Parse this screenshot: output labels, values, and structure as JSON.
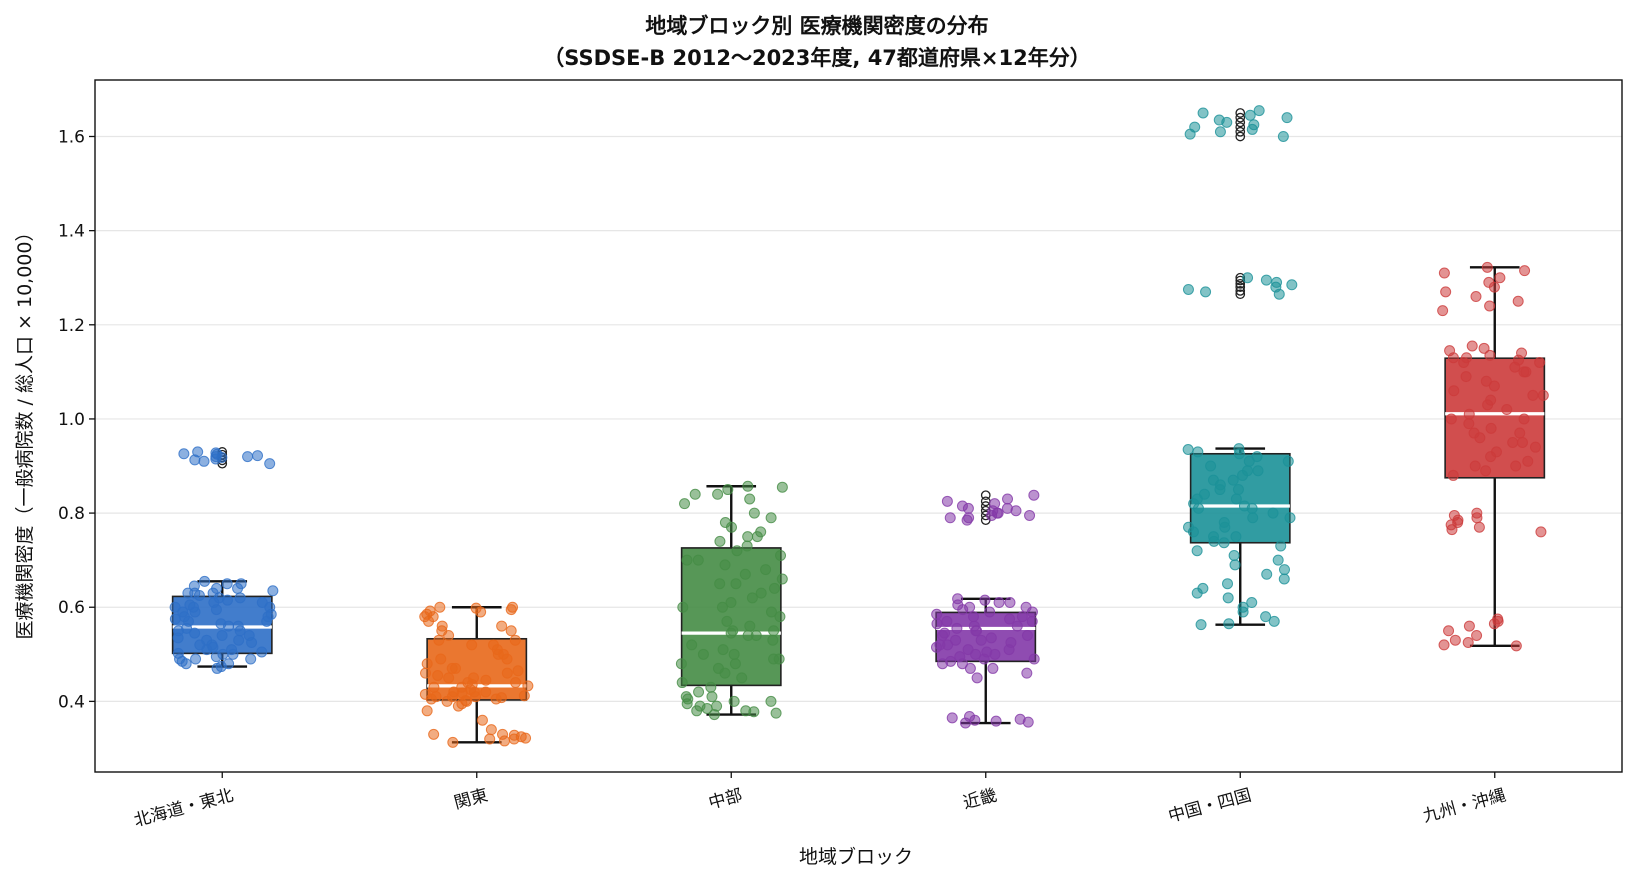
{
  "chart_data": {
    "type": "box",
    "title": [
      "地域ブロック別 医療機関密度の分布",
      "（SSDSE-B 2012〜2023年度, 47都道府県×12年分）"
    ],
    "xlabel": "地域ブロック",
    "ylabel": "医療機関密度（一般病院数 / 総人口 × 10,000）",
    "ylim": [
      0.25,
      1.72
    ],
    "yticks": [
      0.4,
      0.6,
      0.8,
      1.0,
      1.2,
      1.4,
      1.6
    ],
    "ytick_labels": [
      "0.4",
      "0.6",
      "0.8",
      "1.0",
      "1.2",
      "1.4",
      "1.6"
    ],
    "grid": "y",
    "categories": [
      "北海道・東北",
      "関東",
      "中部",
      "近畿",
      "中国・四国",
      "九州・沖縄"
    ],
    "colors": [
      "#2e6fc7",
      "#e8681a",
      "#458c45",
      "#8338a8",
      "#1b9198",
      "#cc3b3b"
    ],
    "boxes": [
      {
        "whislo": 0.474,
        "q1": 0.502,
        "med": 0.558,
        "q3": 0.623,
        "whishi": 0.655,
        "fliers": [
          0.905,
          0.912,
          0.918,
          0.924,
          0.93
        ]
      },
      {
        "whislo": 0.313,
        "q1": 0.403,
        "med": 0.433,
        "q3": 0.533,
        "whishi": 0.6,
        "fliers": []
      },
      {
        "whislo": 0.372,
        "q1": 0.434,
        "med": 0.545,
        "q3": 0.726,
        "whishi": 0.857,
        "fliers": []
      },
      {
        "whislo": 0.354,
        "q1": 0.485,
        "med": 0.555,
        "q3": 0.589,
        "whishi": 0.618,
        "fliers": [
          0.785,
          0.795,
          0.805,
          0.815,
          0.825,
          0.838
        ]
      },
      {
        "whislo": 0.563,
        "q1": 0.737,
        "med": 0.815,
        "q3": 0.926,
        "whishi": 0.937,
        "fliers": [
          1.265,
          1.272,
          1.28,
          1.287,
          1.294,
          1.3,
          1.6,
          1.61,
          1.62,
          1.63,
          1.64,
          1.65
        ]
      },
      {
        "whislo": 0.518,
        "q1": 0.875,
        "med": 1.011,
        "q3": 1.129,
        "whishi": 1.322,
        "fliers": []
      }
    ],
    "points": [
      [
        0.474,
        0.48,
        0.485,
        0.49,
        0.495,
        0.5,
        0.502,
        0.505,
        0.51,
        0.515,
        0.52,
        0.525,
        0.53,
        0.535,
        0.54,
        0.545,
        0.55,
        0.555,
        0.56,
        0.565,
        0.57,
        0.575,
        0.58,
        0.585,
        0.59,
        0.595,
        0.6,
        0.605,
        0.61,
        0.615,
        0.62,
        0.625,
        0.63,
        0.635,
        0.64,
        0.645,
        0.65,
        0.655,
        0.48,
        0.49,
        0.51,
        0.53,
        0.55,
        0.57,
        0.59,
        0.61,
        0.62,
        0.63,
        0.5,
        0.52,
        0.54,
        0.56,
        0.58,
        0.6,
        0.47,
        0.49,
        0.6,
        0.63,
        0.65,
        0.64,
        0.905,
        0.91,
        0.915,
        0.918,
        0.92,
        0.922,
        0.925,
        0.928,
        0.93,
        0.913,
        0.92,
        0.926
      ],
      [
        0.313,
        0.316,
        0.32,
        0.322,
        0.325,
        0.328,
        0.33,
        0.34,
        0.36,
        0.38,
        0.39,
        0.395,
        0.4,
        0.402,
        0.405,
        0.408,
        0.41,
        0.412,
        0.415,
        0.418,
        0.42,
        0.425,
        0.43,
        0.433,
        0.436,
        0.44,
        0.445,
        0.45,
        0.455,
        0.46,
        0.465,
        0.47,
        0.48,
        0.49,
        0.5,
        0.51,
        0.52,
        0.53,
        0.54,
        0.55,
        0.56,
        0.57,
        0.58,
        0.585,
        0.59,
        0.595,
        0.6,
        0.6,
        0.598,
        0.592,
        0.42,
        0.41,
        0.405,
        0.43,
        0.45,
        0.47,
        0.49,
        0.53,
        0.55,
        0.58,
        0.32,
        0.33,
        0.4,
        0.41,
        0.42,
        0.44,
        0.46,
        0.5,
        0.52,
        0.56
      ],
      [
        0.372,
        0.375,
        0.378,
        0.38,
        0.385,
        0.39,
        0.395,
        0.4,
        0.405,
        0.41,
        0.42,
        0.43,
        0.44,
        0.45,
        0.46,
        0.47,
        0.48,
        0.49,
        0.5,
        0.51,
        0.52,
        0.53,
        0.54,
        0.545,
        0.55,
        0.56,
        0.57,
        0.58,
        0.59,
        0.6,
        0.61,
        0.62,
        0.63,
        0.64,
        0.65,
        0.66,
        0.67,
        0.68,
        0.69,
        0.7,
        0.71,
        0.72,
        0.73,
        0.74,
        0.75,
        0.76,
        0.77,
        0.78,
        0.79,
        0.8,
        0.82,
        0.84,
        0.85,
        0.855,
        0.857,
        0.84,
        0.83,
        0.38,
        0.39,
        0.4,
        0.41,
        0.48,
        0.49,
        0.55,
        0.6,
        0.65,
        0.7,
        0.75,
        0.5,
        0.54
      ],
      [
        0.354,
        0.356,
        0.358,
        0.36,
        0.362,
        0.365,
        0.368,
        0.45,
        0.46,
        0.47,
        0.48,
        0.485,
        0.49,
        0.495,
        0.5,
        0.505,
        0.51,
        0.515,
        0.52,
        0.525,
        0.53,
        0.535,
        0.54,
        0.545,
        0.55,
        0.555,
        0.56,
        0.565,
        0.57,
        0.575,
        0.58,
        0.585,
        0.59,
        0.595,
        0.6,
        0.605,
        0.61,
        0.615,
        0.618,
        0.61,
        0.6,
        0.59,
        0.58,
        0.57,
        0.56,
        0.55,
        0.54,
        0.53,
        0.52,
        0.51,
        0.5,
        0.49,
        0.48,
        0.47,
        0.785,
        0.79,
        0.795,
        0.8,
        0.805,
        0.81,
        0.815,
        0.82,
        0.825,
        0.83,
        0.838,
        0.8,
        0.81,
        0.79,
        0.795,
        0.805
      ],
      [
        0.563,
        0.565,
        0.57,
        0.58,
        0.59,
        0.6,
        0.61,
        0.62,
        0.63,
        0.64,
        0.65,
        0.66,
        0.67,
        0.68,
        0.69,
        0.7,
        0.71,
        0.72,
        0.73,
        0.737,
        0.74,
        0.75,
        0.76,
        0.77,
        0.78,
        0.79,
        0.8,
        0.81,
        0.815,
        0.82,
        0.83,
        0.84,
        0.85,
        0.86,
        0.87,
        0.88,
        0.89,
        0.9,
        0.91,
        0.92,
        0.926,
        0.93,
        0.935,
        0.937,
        0.75,
        0.77,
        0.79,
        0.81,
        0.83,
        0.85,
        0.87,
        0.89,
        0.91,
        1.265,
        1.27,
        1.275,
        1.28,
        1.285,
        1.29,
        1.295,
        1.3,
        1.6,
        1.605,
        1.61,
        1.615,
        1.62,
        1.625,
        1.63,
        1.635,
        1.64,
        1.645,
        1.65,
        1.655
      ],
      [
        0.518,
        0.52,
        0.525,
        0.53,
        0.54,
        0.55,
        0.56,
        0.565,
        0.57,
        0.575,
        0.76,
        0.765,
        0.77,
        0.775,
        0.78,
        0.785,
        0.79,
        0.795,
        0.8,
        0.88,
        0.89,
        0.9,
        0.91,
        0.92,
        0.93,
        0.94,
        0.95,
        0.96,
        0.97,
        0.98,
        0.99,
        1.0,
        1.01,
        1.02,
        1.03,
        1.04,
        1.05,
        1.06,
        1.07,
        1.08,
        1.09,
        1.1,
        1.11,
        1.12,
        1.125,
        1.13,
        1.135,
        1.14,
        1.145,
        1.15,
        1.155,
        1.23,
        1.24,
        1.25,
        1.26,
        1.27,
        1.28,
        1.29,
        1.3,
        1.31,
        1.315,
        1.322,
        0.9,
        0.95,
        1.0,
        1.05,
        1.1,
        1.12,
        1.13,
        0.97
      ]
    ]
  }
}
